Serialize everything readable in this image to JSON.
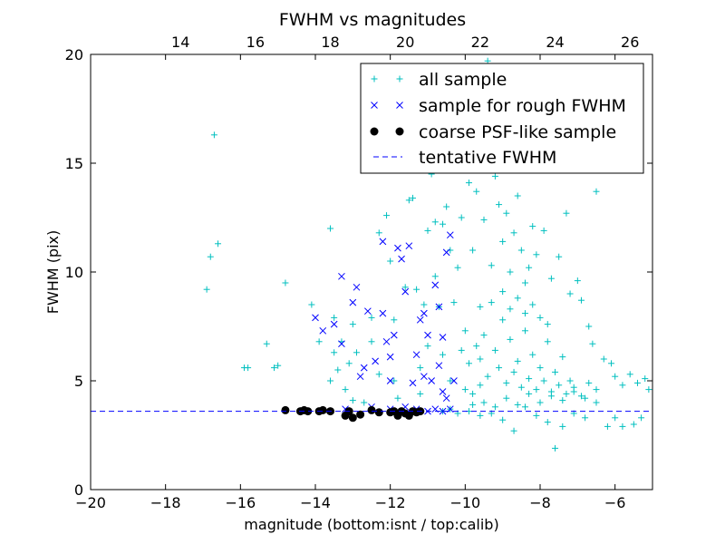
{
  "chart_data": {
    "type": "scatter",
    "title": "FWHM vs magnitudes",
    "xlabel": "magnitude (bottom:isnt / top:calib)",
    "ylabel": "FWHM (pix)",
    "xlim": [
      -20,
      -5
    ],
    "ylim": [
      0,
      20
    ],
    "xticks": [
      -20,
      -18,
      -16,
      -14,
      -12,
      -10,
      -8,
      -6
    ],
    "xtick_labels": [
      "−20",
      "−18",
      "−16",
      "−14",
      "−12",
      "−10",
      "−8",
      "−6"
    ],
    "yticks": [
      0,
      5,
      10,
      15,
      20
    ],
    "ytick_labels": [
      "0",
      "5",
      "10",
      "15",
      "20"
    ],
    "top_axis": {
      "offset_from_bottom": 31.6,
      "ticks": [
        14,
        16,
        18,
        20,
        22,
        24,
        26
      ],
      "tick_labels": [
        "14",
        "16",
        "18",
        "20",
        "22",
        "24",
        "26"
      ]
    },
    "tentative_fwhm": 3.6,
    "legend_position": "top-right",
    "series": [
      {
        "name": "all sample",
        "marker": "plus",
        "color": "#00bfbf",
        "points": [
          [
            -16.7,
            16.3
          ],
          [
            -16.8,
            10.7
          ],
          [
            -16.6,
            11.3
          ],
          [
            -16.9,
            9.2
          ],
          [
            -15.9,
            5.6
          ],
          [
            -15.8,
            5.6
          ],
          [
            -15.3,
            6.7
          ],
          [
            -15.1,
            5.6
          ],
          [
            -15.0,
            5.7
          ],
          [
            -14.8,
            9.5
          ],
          [
            -14.1,
            8.5
          ],
          [
            -13.9,
            6.8
          ],
          [
            -13.5,
            7.9
          ],
          [
            -13.5,
            6.3
          ],
          [
            -13.3,
            6.8
          ],
          [
            -13.6,
            12.0
          ],
          [
            -13.0,
            7.6
          ],
          [
            -13.0,
            4.1
          ],
          [
            -13.4,
            5.5
          ],
          [
            -13.6,
            5.0
          ],
          [
            -13.2,
            4.6
          ],
          [
            -13.1,
            5.8
          ],
          [
            -12.9,
            6.3
          ],
          [
            -12.7,
            4.0
          ],
          [
            -12.5,
            7.9
          ],
          [
            -12.5,
            6.8
          ],
          [
            -12.3,
            5.3
          ],
          [
            -12.3,
            11.8
          ],
          [
            -12.1,
            12.6
          ],
          [
            -12.0,
            10.5
          ],
          [
            -11.9,
            7.8
          ],
          [
            -11.9,
            5.0
          ],
          [
            -11.8,
            4.2
          ],
          [
            -11.6,
            9.3
          ],
          [
            -11.5,
            13.3
          ],
          [
            -11.4,
            13.4
          ],
          [
            -11.3,
            9.2
          ],
          [
            -11.2,
            5.6
          ],
          [
            -11.2,
            4.4
          ],
          [
            -11.1,
            8.5
          ],
          [
            -11.0,
            11.9
          ],
          [
            -11.0,
            6.6
          ],
          [
            -10.9,
            14.5
          ],
          [
            -10.8,
            12.3
          ],
          [
            -10.8,
            9.8
          ],
          [
            -10.7,
            8.4
          ],
          [
            -10.7,
            14.7
          ],
          [
            -10.6,
            12.2
          ],
          [
            -10.6,
            6.2
          ],
          [
            -10.5,
            13.0
          ],
          [
            -10.4,
            5.0
          ],
          [
            -10.4,
            11.0
          ],
          [
            -10.3,
            8.6
          ],
          [
            -10.3,
            15.3
          ],
          [
            -10.2,
            10.2
          ],
          [
            -10.1,
            12.5
          ],
          [
            -10.0,
            19.1
          ],
          [
            -10.0,
            7.3
          ],
          [
            -9.9,
            14.1
          ],
          [
            -9.8,
            11.0
          ],
          [
            -9.7,
            13.7
          ],
          [
            -9.6,
            8.4
          ],
          [
            -9.6,
            6.0
          ],
          [
            -9.5,
            12.4
          ],
          [
            -9.4,
            19.7
          ],
          [
            -9.3,
            10.3
          ],
          [
            -9.2,
            14.4
          ],
          [
            -9.1,
            13.1
          ],
          [
            -9.0,
            11.4
          ],
          [
            -8.9,
            12.7
          ],
          [
            -8.9,
            15.4
          ],
          [
            -8.8,
            10.0
          ],
          [
            -8.7,
            11.8
          ],
          [
            -8.6,
            13.5
          ],
          [
            -8.5,
            11.0
          ],
          [
            -8.4,
            9.5
          ],
          [
            -8.3,
            10.2
          ],
          [
            -8.2,
            12.1
          ],
          [
            -8.1,
            10.8
          ],
          [
            -7.9,
            11.9
          ],
          [
            -7.7,
            9.7
          ],
          [
            -7.5,
            10.7
          ],
          [
            -7.3,
            12.7
          ],
          [
            -7.2,
            9.0
          ],
          [
            -7.0,
            9.6
          ],
          [
            -6.9,
            8.7
          ],
          [
            -6.7,
            7.5
          ],
          [
            -6.6,
            6.7
          ],
          [
            -6.5,
            13.7
          ],
          [
            -6.3,
            6.0
          ],
          [
            -6.1,
            5.8
          ],
          [
            -6.0,
            5.2
          ],
          [
            -5.8,
            4.8
          ],
          [
            -5.6,
            5.3
          ],
          [
            -5.4,
            4.9
          ],
          [
            -5.2,
            5.1
          ],
          [
            -5.1,
            4.6
          ],
          [
            -5.3,
            3.3
          ],
          [
            -5.5,
            3.0
          ],
          [
            -5.8,
            2.9
          ],
          [
            -6.0,
            3.3
          ],
          [
            -6.2,
            2.9
          ],
          [
            -6.5,
            4.0
          ],
          [
            -6.8,
            3.3
          ],
          [
            -7.1,
            3.5
          ],
          [
            -7.4,
            2.9
          ],
          [
            -7.6,
            1.9
          ],
          [
            -7.8,
            3.1
          ],
          [
            -8.1,
            3.4
          ],
          [
            -8.4,
            3.8
          ],
          [
            -8.7,
            2.7
          ],
          [
            -9.0,
            3.2
          ],
          [
            -9.3,
            3.5
          ],
          [
            -9.6,
            3.4
          ],
          [
            -9.9,
            3.6
          ],
          [
            -10.2,
            3.5
          ],
          [
            -10.4,
            3.7
          ],
          [
            -10.6,
            3.6
          ],
          [
            -9.8,
            3.9
          ],
          [
            -9.5,
            4.0
          ],
          [
            -9.2,
            3.8
          ],
          [
            -8.9,
            4.2
          ],
          [
            -8.6,
            3.9
          ],
          [
            -8.3,
            4.4
          ],
          [
            -8.0,
            4.0
          ],
          [
            -7.7,
            4.3
          ],
          [
            -7.4,
            4.1
          ],
          [
            -7.1,
            4.5
          ],
          [
            -6.8,
            4.2
          ],
          [
            -6.5,
            4.6
          ],
          [
            -9.5,
            7.1
          ],
          [
            -9.2,
            6.4
          ],
          [
            -9.0,
            7.8
          ],
          [
            -8.8,
            6.9
          ],
          [
            -8.6,
            5.9
          ],
          [
            -8.4,
            7.3
          ],
          [
            -8.2,
            6.2
          ],
          [
            -8.0,
            5.6
          ],
          [
            -7.8,
            6.8
          ],
          [
            -7.6,
            5.4
          ],
          [
            -7.4,
            6.1
          ],
          [
            -7.2,
            5.0
          ],
          [
            -9.4,
            5.2
          ],
          [
            -9.1,
            5.6
          ],
          [
            -8.9,
            4.9
          ],
          [
            -8.7,
            5.4
          ],
          [
            -8.5,
            4.7
          ],
          [
            -8.3,
            5.1
          ],
          [
            -8.1,
            4.6
          ],
          [
            -7.9,
            5.0
          ],
          [
            -7.7,
            4.5
          ],
          [
            -7.5,
            4.8
          ],
          [
            -7.3,
            4.4
          ],
          [
            -7.1,
            4.7
          ],
          [
            -6.9,
            4.3
          ],
          [
            -6.7,
            4.9
          ],
          [
            -9.3,
            8.6
          ],
          [
            -9.0,
            9.1
          ],
          [
            -8.8,
            8.3
          ],
          [
            -8.6,
            8.8
          ],
          [
            -8.4,
            8.1
          ],
          [
            -8.2,
            8.5
          ],
          [
            -8.0,
            7.9
          ],
          [
            -7.8,
            7.6
          ],
          [
            -10.1,
            6.4
          ],
          [
            -9.9,
            5.8
          ],
          [
            -9.7,
            6.6
          ],
          [
            -10.0,
            4.6
          ],
          [
            -9.8,
            4.4
          ],
          [
            -9.6,
            4.8
          ]
        ]
      },
      {
        "name": "sample for rough FWHM",
        "marker": "cross",
        "color": "#0000ff",
        "points": [
          [
            -14.0,
            7.9
          ],
          [
            -13.8,
            7.3
          ],
          [
            -13.5,
            7.6
          ],
          [
            -13.3,
            9.8
          ],
          [
            -13.3,
            6.7
          ],
          [
            -13.0,
            8.6
          ],
          [
            -12.9,
            9.3
          ],
          [
            -12.8,
            5.2
          ],
          [
            -12.7,
            5.6
          ],
          [
            -12.6,
            8.2
          ],
          [
            -12.4,
            5.9
          ],
          [
            -12.2,
            8.1
          ],
          [
            -12.2,
            11.4
          ],
          [
            -12.1,
            6.8
          ],
          [
            -12.0,
            6.1
          ],
          [
            -12.0,
            5.0
          ],
          [
            -11.9,
            7.1
          ],
          [
            -11.8,
            11.1
          ],
          [
            -11.7,
            10.6
          ],
          [
            -11.6,
            9.1
          ],
          [
            -11.5,
            11.2
          ],
          [
            -11.4,
            4.9
          ],
          [
            -11.3,
            6.2
          ],
          [
            -11.2,
            7.8
          ],
          [
            -11.1,
            5.2
          ],
          [
            -11.1,
            8.1
          ],
          [
            -11.0,
            7.1
          ],
          [
            -10.9,
            5.0
          ],
          [
            -10.8,
            9.4
          ],
          [
            -10.7,
            5.7
          ],
          [
            -10.7,
            8.4
          ],
          [
            -10.6,
            4.5
          ],
          [
            -10.6,
            7.0
          ],
          [
            -10.5,
            4.2
          ],
          [
            -10.4,
            11.7
          ],
          [
            -10.5,
            10.9
          ],
          [
            -10.3,
            5.0
          ],
          [
            -10.4,
            3.7
          ],
          [
            -10.6,
            3.6
          ],
          [
            -10.8,
            3.7
          ],
          [
            -11.0,
            3.6
          ],
          [
            -11.3,
            3.7
          ],
          [
            -11.6,
            3.8
          ],
          [
            -12.0,
            3.7
          ],
          [
            -12.5,
            3.8
          ],
          [
            -13.2,
            3.7
          ]
        ]
      },
      {
        "name": "coarse PSF-like sample",
        "marker": "dot",
        "color": "#000000",
        "points": [
          [
            -14.8,
            3.65
          ],
          [
            -14.4,
            3.6
          ],
          [
            -14.3,
            3.65
          ],
          [
            -14.2,
            3.6
          ],
          [
            -13.9,
            3.6
          ],
          [
            -13.8,
            3.65
          ],
          [
            -13.6,
            3.6
          ],
          [
            -13.2,
            3.4
          ],
          [
            -13.1,
            3.6
          ],
          [
            -13.0,
            3.3
          ],
          [
            -12.8,
            3.45
          ],
          [
            -12.5,
            3.65
          ],
          [
            -12.3,
            3.55
          ],
          [
            -12.0,
            3.55
          ],
          [
            -11.9,
            3.6
          ],
          [
            -11.8,
            3.4
          ],
          [
            -11.7,
            3.6
          ],
          [
            -11.6,
            3.5
          ],
          [
            -11.5,
            3.4
          ],
          [
            -11.4,
            3.6
          ],
          [
            -11.3,
            3.55
          ],
          [
            -11.2,
            3.6
          ]
        ]
      },
      {
        "name": "tentative FWHM",
        "marker": "dashed-line",
        "color": "#0000ff",
        "points": []
      }
    ]
  }
}
